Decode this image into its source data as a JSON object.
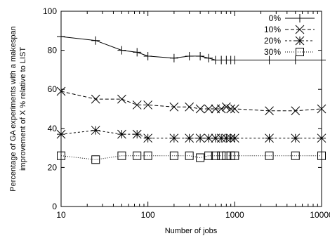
{
  "chart_data": {
    "type": "line",
    "title": "",
    "xlabel": "Number of jobs",
    "ylabel_lines": [
      "Percentage of GA experiments with a makespan",
      "improvement of X % relative to LIST"
    ],
    "x_scale": "log",
    "xlim": [
      10,
      10000
    ],
    "ylim": [
      0,
      100
    ],
    "x_ticks": [
      10,
      100,
      1000,
      10000
    ],
    "y_ticks": [
      0,
      20,
      40,
      60,
      80,
      100
    ],
    "grid": false,
    "legend_position": "top-right",
    "x": [
      10,
      25,
      50,
      75,
      100,
      200,
      300,
      400,
      500,
      600,
      700,
      800,
      900,
      1000,
      2500,
      5000,
      10000
    ],
    "series": [
      {
        "name": "0%",
        "marker": "plus",
        "dash": "solid",
        "values": [
          87,
          85,
          80,
          79,
          77,
          76,
          77,
          77,
          76,
          75,
          75,
          75,
          75,
          75,
          75,
          75,
          75
        ]
      },
      {
        "name": "10%",
        "marker": "x",
        "dash": "dashed",
        "values": [
          59,
          55,
          55,
          52,
          52,
          51,
          51,
          50,
          50,
          50,
          50,
          51,
          50,
          50,
          49,
          49,
          50
        ]
      },
      {
        "name": "20%",
        "marker": "star",
        "dash": "short-dashed",
        "values": [
          37,
          39,
          37,
          37,
          35,
          35,
          35,
          35,
          35,
          35,
          35,
          35,
          35,
          35,
          35,
          35,
          35
        ]
      },
      {
        "name": "30%",
        "marker": "square",
        "dash": "dotted",
        "values": [
          26,
          24,
          26,
          26,
          26,
          26,
          26,
          25,
          26,
          26,
          26,
          26,
          26,
          26,
          26,
          26,
          26
        ]
      }
    ]
  }
}
